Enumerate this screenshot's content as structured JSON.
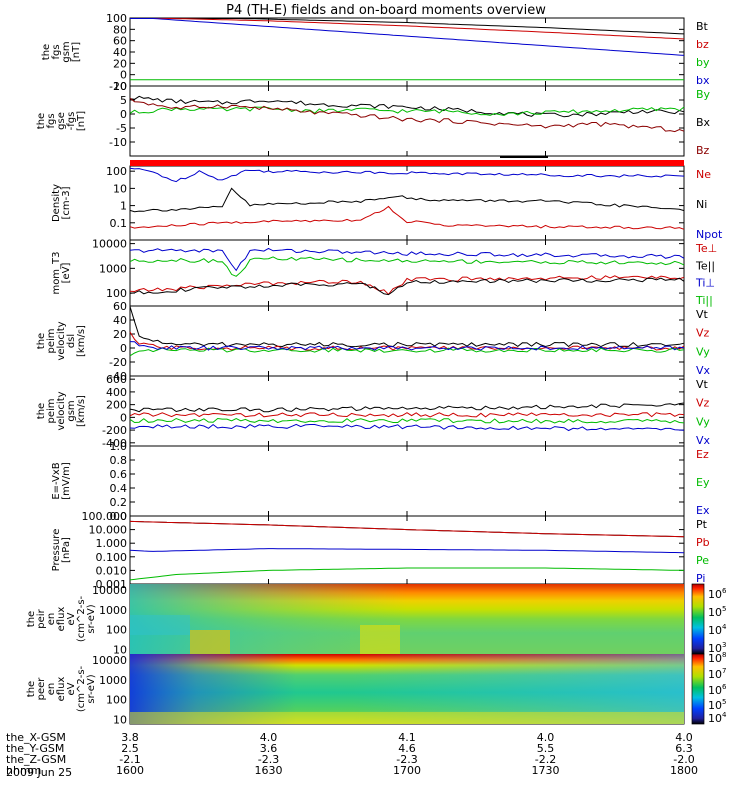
{
  "title": "P4 (TH-E) fields and on-board moments overview",
  "date_label": "2009 Jun 25",
  "orbit_rows": [
    {
      "label": "the_X-GSM",
      "values": [
        "3.8",
        "4.0",
        "4.1",
        "4.0",
        "4.0"
      ]
    },
    {
      "label": "the_Y-GSM",
      "values": [
        "2.5",
        "3.6",
        "4.6",
        "5.5",
        "6.3"
      ]
    },
    {
      "label": "the_Z-GSM",
      "values": [
        "-2.1",
        "-2.3",
        "-2.3",
        "-2.2",
        "-2.0"
      ]
    },
    {
      "label": "hhmm",
      "values": [
        "1600",
        "1630",
        "1700",
        "1730",
        "1800"
      ]
    }
  ],
  "colorbars": {
    "ion": {
      "ticks": [
        "10^6",
        "10^5",
        "10^4",
        "10^3"
      ]
    },
    "electron": {
      "ticks": [
        "10^8",
        "10^7",
        "10^6",
        "10^5",
        "10^4"
      ]
    }
  },
  "chart_data": [
    {
      "type": "line",
      "ylabel": [
        "the",
        "fgs",
        "gsm",
        "[nT]"
      ],
      "ylim": [
        -20,
        100
      ],
      "yticks": [
        "100",
        "80",
        "60",
        "40",
        "20",
        "0",
        "-20"
      ],
      "legend": [
        {
          "name": "Bt",
          "color": "#000000"
        },
        {
          "name": "bz",
          "color": "#cc0000"
        },
        {
          "name": "by",
          "color": "#00bb00"
        },
        {
          "name": "bx",
          "color": "#0000cc"
        }
      ],
      "series": [
        {
          "name": "Bt",
          "color": "#000000",
          "x": [
            1600,
            1630,
            1700,
            1730,
            1800
          ],
          "values": [
            103,
            98,
            92,
            83,
            72
          ]
        },
        {
          "name": "bz",
          "color": "#cc0000",
          "x": [
            1600,
            1630,
            1700,
            1730,
            1800
          ],
          "values": [
            101,
            95,
            86,
            75,
            63
          ]
        },
        {
          "name": "by",
          "color": "#00bb00",
          "x": [
            1600,
            1630,
            1700,
            1730,
            1800
          ],
          "values": [
            -9,
            -9,
            -9,
            -9,
            -9
          ]
        },
        {
          "name": "bx",
          "color": "#0000cc",
          "x": [
            1600,
            1630,
            1700,
            1730,
            1800
          ],
          "values": [
            102,
            85,
            68,
            51,
            34
          ]
        }
      ]
    },
    {
      "type": "line",
      "ylabel": [
        "the",
        "fgs",
        "gse",
        "-fgs",
        "[nT]"
      ],
      "ylim": [
        -15,
        10
      ],
      "yticks": [
        "10",
        "5",
        "0",
        "-5",
        "-10"
      ],
      "legend": [
        {
          "name": "By",
          "color": "#00bb00"
        },
        {
          "name": "Bx",
          "color": "#000000"
        },
        {
          "name": "Bz",
          "color": "#8b0000"
        }
      ],
      "series": [
        {
          "name": "Bx",
          "color": "#000000",
          "x": [
            1600,
            1610,
            1620,
            1630,
            1640,
            1650,
            1700,
            1710,
            1720,
            1730,
            1740,
            1750,
            1800
          ],
          "values": [
            6,
            4.5,
            4,
            5,
            3.5,
            3,
            2.5,
            1.5,
            0.5,
            -0.5,
            0,
            1,
            0.5
          ]
        },
        {
          "name": "By",
          "color": "#00bb00",
          "x": [
            1600,
            1610,
            1620,
            1630,
            1640,
            1650,
            1700,
            1710,
            1720,
            1730,
            1740,
            1750,
            1800
          ],
          "values": [
            0.5,
            2,
            1.5,
            2,
            1,
            1.5,
            1,
            1,
            0,
            0.5,
            1,
            1.5,
            2
          ]
        },
        {
          "name": "Bz",
          "color": "#8b0000",
          "x": [
            1600,
            1610,
            1620,
            1630,
            1640,
            1650,
            1700,
            1710,
            1720,
            1730,
            1740,
            1750,
            1800
          ],
          "values": [
            5,
            2,
            3,
            2,
            0.5,
            -0.5,
            -2,
            -2.5,
            -3.5,
            -4.5,
            -3.5,
            -4.5,
            -6
          ]
        }
      ]
    },
    {
      "type": "line",
      "ylabel": [
        "Density",
        "[cm-3]"
      ],
      "yscale": "log",
      "ylim": [
        0.01,
        200
      ],
      "yticks": [
        "100",
        "10",
        "1",
        "0.1"
      ],
      "legend": [
        {
          "name": "Ne",
          "color": "#cc0000"
        },
        {
          "name": "Ni",
          "color": "#000000"
        },
        {
          "name": "Npot",
          "color": "#0000cc"
        }
      ],
      "series": [
        {
          "name": "Npot",
          "color": "#0000cc",
          "x": [
            1600,
            1605,
            1610,
            1615,
            1620,
            1625,
            1630,
            1700,
            1730,
            1800
          ],
          "values": [
            150,
            90,
            25,
            100,
            30,
            110,
            100,
            80,
            60,
            50
          ]
        },
        {
          "name": "Ni",
          "color": "#000000",
          "x": [
            1600,
            1610,
            1620,
            1622,
            1626,
            1630,
            1650,
            1658,
            1700,
            1710,
            1730,
            1800
          ],
          "values": [
            0.5,
            0.6,
            0.8,
            10,
            1,
            1.2,
            1.8,
            4,
            2.5,
            2,
            1.8,
            0.6
          ]
        },
        {
          "name": "Ne",
          "color": "#cc0000",
          "x": [
            1600,
            1610,
            1620,
            1630,
            1650,
            1656,
            1700,
            1710,
            1730,
            1800
          ],
          "values": [
            0.05,
            0.07,
            0.1,
            0.12,
            0.15,
            0.8,
            0.12,
            0.07,
            0.06,
            0.05
          ]
        }
      ]
    },
    {
      "type": "line",
      "ylabel": [
        "mom_T3",
        "[eV]"
      ],
      "yscale": "log",
      "ylim": [
        30,
        14000
      ],
      "yticks": [
        "10000",
        "1000",
        "100"
      ],
      "legend": [
        {
          "name": "Te⊥",
          "color": "#cc0000"
        },
        {
          "name": "Te||",
          "color": "#000000"
        },
        {
          "name": "Ti⊥",
          "color": "#0000cc"
        },
        {
          "name": "Ti||",
          "color": "#00bb00"
        }
      ],
      "series": [
        {
          "name": "Ti⊥",
          "color": "#0000cc",
          "x": [
            1600,
            1610,
            1620,
            1623,
            1626,
            1630,
            1700,
            1730,
            1800
          ],
          "values": [
            5000,
            5500,
            5000,
            900,
            5000,
            5500,
            4000,
            3500,
            3000
          ]
        },
        {
          "name": "Ti||",
          "color": "#00bb00",
          "x": [
            1600,
            1610,
            1620,
            1623,
            1626,
            1630,
            1700,
            1730,
            1800
          ],
          "values": [
            2000,
            2200,
            2000,
            400,
            2200,
            2500,
            2000,
            1800,
            1600
          ]
        },
        {
          "name": "Te⊥",
          "color": "#cc0000",
          "x": [
            1600,
            1610,
            1620,
            1630,
            1650,
            1656,
            1700,
            1730,
            1800
          ],
          "values": [
            120,
            150,
            200,
            250,
            300,
            100,
            350,
            400,
            450
          ]
        },
        {
          "name": "Te||",
          "color": "#000000",
          "x": [
            1600,
            1610,
            1620,
            1630,
            1650,
            1656,
            1700,
            1730,
            1800
          ],
          "values": [
            100,
            130,
            170,
            200,
            250,
            90,
            280,
            320,
            350
          ]
        }
      ]
    },
    {
      "type": "line",
      "ylabel": [
        "the",
        "peim",
        "velocity",
        "dsl",
        "[km/s]"
      ],
      "ylim": [
        -40,
        60
      ],
      "yticks": [
        "60",
        "40",
        "20",
        "0",
        "-20",
        "-40"
      ],
      "legend": [
        {
          "name": "Vt",
          "color": "#000000"
        },
        {
          "name": "Vz",
          "color": "#cc0000"
        },
        {
          "name": "Vy",
          "color": "#00bb00"
        },
        {
          "name": "Vx",
          "color": "#0000cc"
        }
      ],
      "series": [
        {
          "name": "Vt",
          "color": "#000000",
          "x": [
            1600,
            1602,
            1610,
            1700,
            1800
          ],
          "values": [
            60,
            15,
            5,
            5,
            5
          ]
        },
        {
          "name": "Vz",
          "color": "#cc0000",
          "x": [
            1600,
            1602,
            1610,
            1700,
            1800
          ],
          "values": [
            20,
            5,
            0,
            0,
            0
          ]
        },
        {
          "name": "Vy",
          "color": "#00bb00",
          "x": [
            1600,
            1602,
            1610,
            1700,
            1800
          ],
          "values": [
            -10,
            -2,
            -3,
            -3,
            -3
          ]
        },
        {
          "name": "Vx",
          "color": "#0000cc",
          "x": [
            1600,
            1602,
            1610,
            1700,
            1800
          ],
          "values": [
            10,
            2,
            0,
            0,
            0
          ]
        }
      ]
    },
    {
      "type": "line",
      "ylabel": [
        "the",
        "peim",
        "velocity",
        "gsm",
        "[km/s]"
      ],
      "ylim": [
        -450,
        650
      ],
      "yticks": [
        "600",
        "400",
        "200",
        "0",
        "-200",
        "-400"
      ],
      "legend": [
        {
          "name": "Vt",
          "color": "#000000"
        },
        {
          "name": "Vz",
          "color": "#cc0000"
        },
        {
          "name": "Vy",
          "color": "#00bb00"
        },
        {
          "name": "Vx",
          "color": "#0000cc"
        }
      ],
      "series": [
        {
          "name": "Vt",
          "color": "#000000",
          "x": [
            1600,
            1630,
            1700,
            1730,
            1800
          ],
          "values": [
            120,
            120,
            140,
            160,
            200
          ]
        },
        {
          "name": "Vz",
          "color": "#cc0000",
          "x": [
            1600,
            1630,
            1700,
            1730,
            1800
          ],
          "values": [
            40,
            40,
            40,
            40,
            40
          ]
        },
        {
          "name": "Vy",
          "color": "#00bb00",
          "x": [
            1600,
            1630,
            1700,
            1730,
            1800
          ],
          "values": [
            -50,
            -50,
            -50,
            -60,
            -60
          ]
        },
        {
          "name": "Vx",
          "color": "#0000cc",
          "x": [
            1600,
            1630,
            1700,
            1730,
            1800
          ],
          "values": [
            -150,
            -140,
            -150,
            -170,
            -190
          ]
        }
      ]
    },
    {
      "type": "line",
      "ylabel": [
        "E=-VxB",
        "[mV/m]"
      ],
      "ylim": [
        0,
        1
      ],
      "yticks": [
        "1.0",
        "0.8",
        "0.6",
        "0.4",
        "0.2",
        "0.0"
      ],
      "legend": [
        {
          "name": "Ez",
          "color": "#cc0000"
        },
        {
          "name": "Ey",
          "color": "#00bb00"
        },
        {
          "name": "Ex",
          "color": "#0000cc"
        }
      ],
      "series": []
    },
    {
      "type": "line",
      "ylabel": [
        "Pressure",
        "[nPa]"
      ],
      "yscale": "log",
      "ylim": [
        0.001,
        100
      ],
      "yticks": [
        "100.000",
        "10.000",
        "1.000",
        "0.100",
        "0.010",
        "0.001"
      ],
      "legend": [
        {
          "name": "Pt",
          "color": "#000000"
        },
        {
          "name": "Pb",
          "color": "#cc0000"
        },
        {
          "name": "Pe",
          "color": "#00bb00"
        },
        {
          "name": "Pi",
          "color": "#0000cc"
        }
      ],
      "series": [
        {
          "name": "Pt",
          "color": "#000000",
          "x": [
            1600,
            1630,
            1700,
            1730,
            1800
          ],
          "values": [
            40,
            22,
            10,
            5,
            3
          ]
        },
        {
          "name": "Pb",
          "color": "#cc0000",
          "x": [
            1600,
            1630,
            1700,
            1730,
            1800
          ],
          "values": [
            40,
            22,
            10,
            5,
            3
          ]
        },
        {
          "name": "Pi",
          "color": "#0000cc",
          "x": [
            1600,
            1605,
            1630,
            1700,
            1730,
            1800
          ],
          "values": [
            0.3,
            0.25,
            0.4,
            0.35,
            0.3,
            0.2
          ]
        },
        {
          "name": "Pe",
          "color": "#00bb00",
          "x": [
            1600,
            1610,
            1630,
            1700,
            1730,
            1800
          ],
          "values": [
            0.002,
            0.005,
            0.01,
            0.015,
            0.015,
            0.01
          ]
        }
      ]
    },
    {
      "type": "heatmap",
      "ylabel": [
        "the",
        "peir",
        "en",
        "eflux",
        "eV",
        "(cm^2-s-",
        "sr-eV)"
      ],
      "yscale": "log",
      "ylim": [
        6,
        20000
      ],
      "yticks": [
        "10000",
        "1000",
        "100",
        "10"
      ]
    },
    {
      "type": "heatmap",
      "ylabel": [
        "the",
        "peer",
        "en",
        "eflux",
        "eV",
        "(cm^2-s-",
        "sr-eV)"
      ],
      "yscale": "log",
      "ylim": [
        6,
        20000
      ],
      "yticks": [
        "10000",
        "1000",
        "100",
        "10"
      ]
    }
  ]
}
